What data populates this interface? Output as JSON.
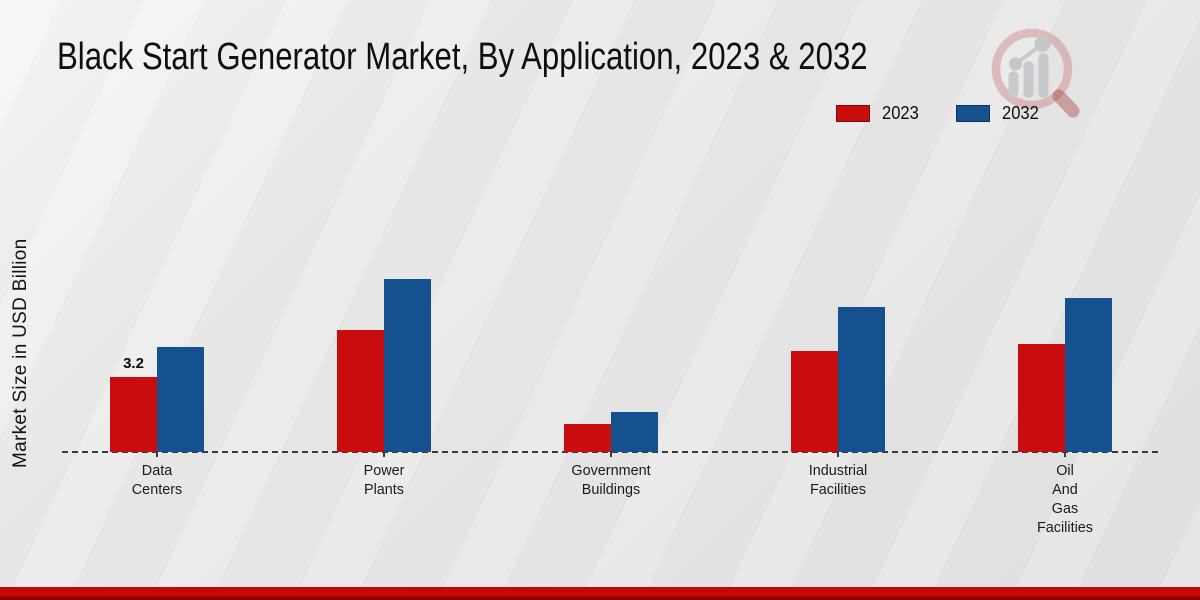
{
  "chart_data": {
    "type": "bar",
    "title": "Black Start Generator Market, By Application, 2023 & 2032",
    "ylabel": "Market Size in USD Billion",
    "xlabel": "",
    "categories": [
      "Data\nCenters",
      "Power\nPlants",
      "Government\nBuildings",
      "Industrial\nFacilities",
      "Oil\nAnd\nGas\nFacilities"
    ],
    "series": [
      {
        "name": "2023",
        "color": "#c90c0e",
        "values": [
          3.2,
          5.2,
          1.2,
          4.3,
          4.6
        ]
      },
      {
        "name": "2032",
        "color": "#15518f",
        "values": [
          4.5,
          7.4,
          1.7,
          6.2,
          6.6
        ]
      }
    ],
    "bar_labels": [
      [
        "3.2",
        "",
        "",
        "",
        ""
      ],
      [
        "",
        "",
        "",
        "",
        ""
      ]
    ],
    "ylim": [
      0,
      8
    ],
    "grid": false,
    "legend_position": "top-right",
    "baseline_style": "dashed"
  },
  "branding": {
    "logo_name": "magnifier-bar-chart-logo",
    "footer_color": "#c50707",
    "footer_edge_color": "#8b0303"
  }
}
